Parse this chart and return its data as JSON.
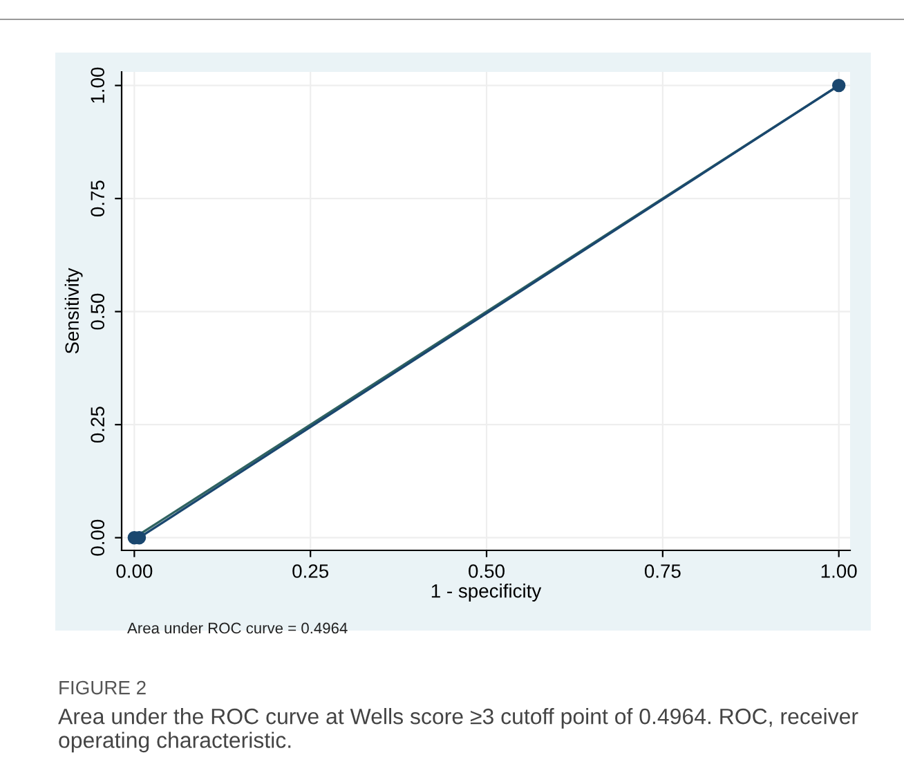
{
  "chart_data": {
    "type": "line",
    "xlabel": "1 - specificity",
    "ylabel": "Sensitivity",
    "xlim": [
      -0.018,
      1.016
    ],
    "ylim": [
      -0.028,
      1.03
    ],
    "xticks": [
      {
        "value": 0,
        "label": "0.00"
      },
      {
        "value": 0.25,
        "label": "0.25"
      },
      {
        "value": 0.5,
        "label": "0.50"
      },
      {
        "value": 0.75,
        "label": "0.75"
      },
      {
        "value": 1,
        "label": "1.00"
      }
    ],
    "yticks": [
      {
        "value": 0,
        "label": "0.00"
      },
      {
        "value": 0.25,
        "label": "0.25"
      },
      {
        "value": 0.5,
        "label": "0.50"
      },
      {
        "value": 0.75,
        "label": "0.75"
      },
      {
        "value": 1,
        "label": "1.00"
      }
    ],
    "grid": true,
    "legend": false,
    "series": [
      {
        "color": "#2f6360",
        "x": [
          0,
          1
        ],
        "values": [
          0,
          1
        ],
        "marker": "none"
      },
      {
        "color": "#1a476f",
        "x": [
          0,
          0.007,
          1
        ],
        "values": [
          0,
          0,
          1
        ],
        "marker": "circle"
      }
    ],
    "annotations": [
      "Area under ROC curve = 0.4964",
      "FIGURE 2",
      "Area under the ROC curve at Wells score ≥3 cutoff point of 0.4964. ROC, receiver operating characteristic."
    ]
  }
}
